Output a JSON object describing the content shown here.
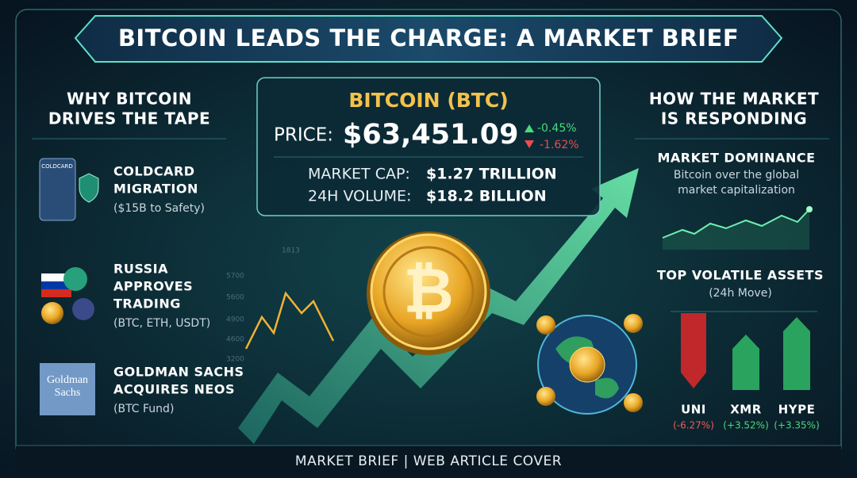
{
  "header": {
    "title": "BITCOIN LEADS THE CHARGE: A MARKET BRIEF"
  },
  "left": {
    "heading": [
      "WHY BITCOIN",
      "DRIVES THE TAPE"
    ],
    "items": [
      {
        "icon_text": "COLDCARD",
        "title": [
          "COLDCARD",
          "MIGRATION"
        ],
        "subtitle": "($15B to Safety)"
      },
      {
        "title": [
          "RUSSIA",
          "APPROVES",
          "TRADING"
        ],
        "subtitle": "(BTC, ETH, USDT)"
      },
      {
        "icon_text": [
          "Goldman",
          "Sachs"
        ],
        "title": [
          "GOLDMAN SACHS",
          "ACQUIRES NEOS"
        ],
        "subtitle": "(BTC Fund)"
      }
    ]
  },
  "center": {
    "name": "BITCOIN (BTC)",
    "price_label": "PRICE:",
    "price": "$63,451.09",
    "change_up": "-0.45%",
    "change_down": "-1.62%",
    "market_cap_label": "MARKET CAP:",
    "market_cap": "$1.27 TRILLION",
    "volume_label": "24H VOLUME:",
    "volume": "$18.2 BILLION",
    "background_ticks": [
      "1813",
      "5700",
      "5600",
      "4900",
      "4600",
      "3200"
    ]
  },
  "right": {
    "heading": [
      "HOW THE MARKET",
      "IS RESPONDING"
    ],
    "dominance": {
      "title": "MARKET DOMINANCE",
      "description": [
        "Bitcoin over the global",
        "market capitalization"
      ]
    },
    "volatile": {
      "title": "TOP VOLATILE ASSETS",
      "subtitle": "(24h Move)",
      "assets": [
        {
          "name": "UNI",
          "move": "(-6.27%)"
        },
        {
          "name": "XMR",
          "move": "(+3.52%)"
        },
        {
          "name": "HYPE",
          "move": "(+3.35%)"
        }
      ]
    }
  },
  "footer": {
    "text": "MARKET BRIEF | WEB ARTICLE COVER"
  }
}
